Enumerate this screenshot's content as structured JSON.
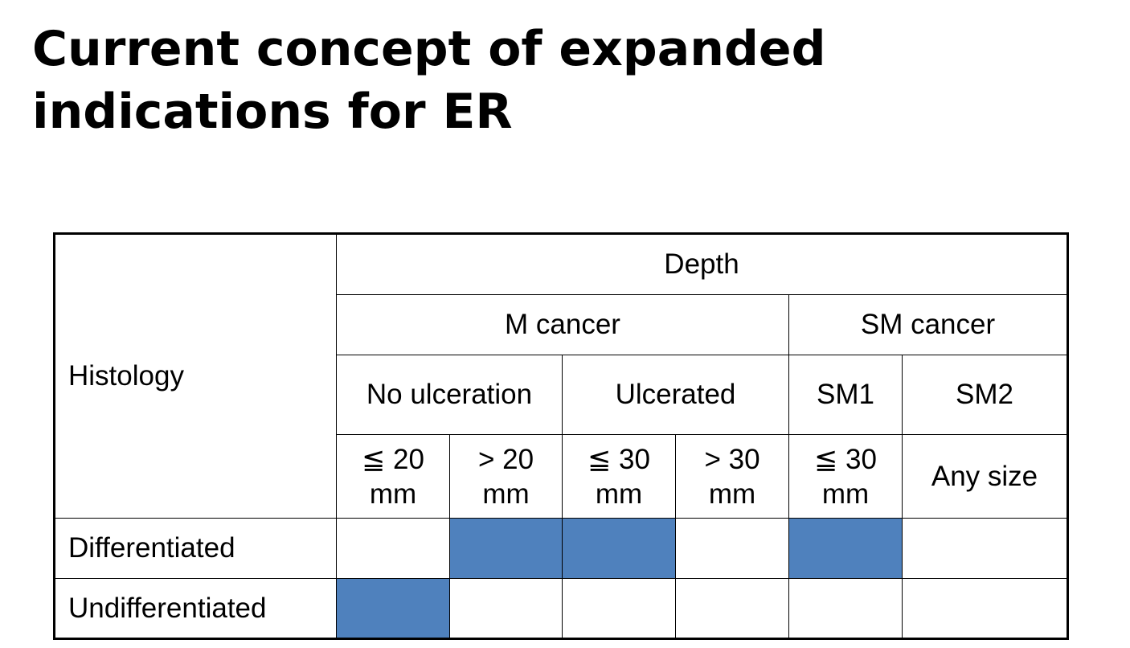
{
  "slide": {
    "title": "Current concept of expanded indications for ER"
  },
  "table": {
    "histology_label": "Histology",
    "depth_label": "Depth",
    "cancer_types": [
      "M cancer",
      "SM cancer"
    ],
    "ulcer_groups": [
      "No ulceration",
      "Ulcerated",
      "SM1",
      "SM2"
    ],
    "sizes": [
      {
        "line1": "≦ 20",
        "line2": "mm"
      },
      {
        "line1": "> 20",
        "line2": "mm"
      },
      {
        "line1": "≦ 30",
        "line2": "mm"
      },
      {
        "line1": "> 30",
        "line2": "mm"
      },
      {
        "line1": "≦ 30",
        "line2": "mm"
      },
      {
        "line1": "Any size",
        "line2": ""
      }
    ],
    "fill_color": "#4f81bd",
    "rows": [
      {
        "label": "Differentiated",
        "indicated": [
          false,
          true,
          true,
          false,
          true,
          false
        ]
      },
      {
        "label": "Undifferentiated",
        "indicated": [
          true,
          false,
          false,
          false,
          false,
          false
        ]
      }
    ]
  }
}
